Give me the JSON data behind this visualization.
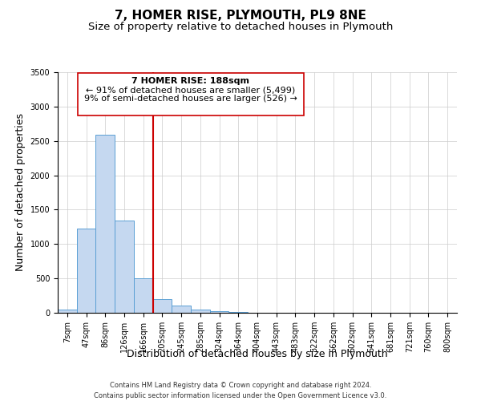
{
  "title": "7, HOMER RISE, PLYMOUTH, PL9 8NE",
  "subtitle": "Size of property relative to detached houses in Plymouth",
  "xlabel": "Distribution of detached houses by size in Plymouth",
  "ylabel": "Number of detached properties",
  "bar_labels": [
    "7sqm",
    "47sqm",
    "86sqm",
    "126sqm",
    "166sqm",
    "205sqm",
    "245sqm",
    "285sqm",
    "324sqm",
    "364sqm",
    "404sqm",
    "443sqm",
    "483sqm",
    "522sqm",
    "562sqm",
    "602sqm",
    "641sqm",
    "681sqm",
    "721sqm",
    "760sqm",
    "800sqm"
  ],
  "bar_heights": [
    50,
    1230,
    2590,
    1340,
    500,
    200,
    110,
    45,
    20,
    10,
    5,
    2,
    1,
    0,
    0,
    0,
    0,
    0,
    0,
    0,
    0
  ],
  "bar_color": "#c5d8f0",
  "bar_edge_color": "#5a9fd4",
  "vline_pos": 4.5,
  "property_line_label": "7 HOMER RISE: 188sqm",
  "annotation_line1": "← 91% of detached houses are smaller (5,499)",
  "annotation_line2": "9% of semi-detached houses are larger (526) →",
  "vline_color": "#cc0000",
  "box_color": "#cc0000",
  "ylim": [
    0,
    3500
  ],
  "xlim": [
    -0.5,
    20.5
  ],
  "footnote1": "Contains HM Land Registry data © Crown copyright and database right 2024.",
  "footnote2": "Contains public sector information licensed under the Open Government Licence v3.0.",
  "title_fontsize": 11,
  "subtitle_fontsize": 9.5,
  "axis_label_fontsize": 9,
  "tick_fontsize": 7,
  "annotation_fontsize": 8
}
